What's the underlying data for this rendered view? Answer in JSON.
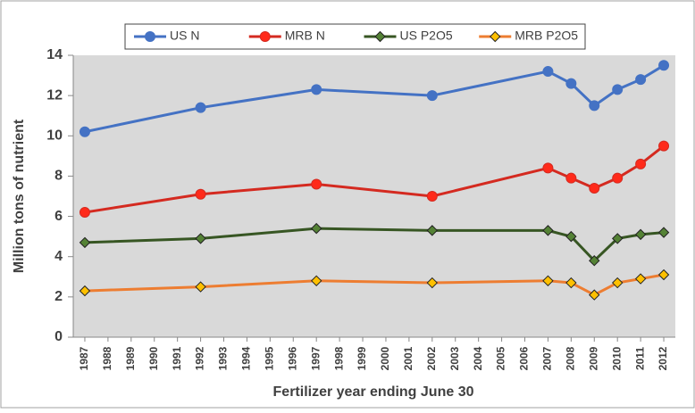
{
  "chart_data": {
    "type": "line",
    "x_label": "Fertilizer year ending June 30",
    "y_label": "Million tons of  nutrient",
    "x": [
      1987,
      1992,
      1997,
      2002,
      2007,
      2008,
      2009,
      2010,
      2011,
      2012
    ],
    "series": [
      {
        "name": "US N",
        "color": "#4472c4",
        "marker": "circle",
        "marker_fill": "#4472c4",
        "values": [
          10.2,
          11.4,
          12.3,
          12.0,
          13.2,
          12.6,
          11.5,
          12.3,
          12.8,
          13.5
        ]
      },
      {
        "name": "MRB N",
        "color": "#d42a20",
        "marker": "circle",
        "marker_fill": "#ff2a1a",
        "values": [
          6.2,
          7.1,
          7.6,
          7.0,
          8.4,
          7.9,
          7.4,
          7.9,
          8.6,
          9.5
        ]
      },
      {
        "name": "US P2O5",
        "color": "#375623",
        "marker": "diamond",
        "marker_fill": "#548235",
        "values": [
          4.7,
          4.9,
          5.4,
          5.3,
          5.3,
          5.0,
          3.8,
          4.9,
          5.1,
          5.2
        ]
      },
      {
        "name": "MRB P2O5",
        "color": "#ed7d31",
        "marker": "diamond",
        "marker_fill": "#ffc000",
        "values": [
          2.3,
          2.5,
          2.8,
          2.7,
          2.8,
          2.7,
          2.1,
          2.7,
          2.9,
          3.1
        ]
      }
    ],
    "xlim": [
      1986.5,
      2012.5
    ],
    "xticks": [
      1987,
      1988,
      1989,
      1990,
      1991,
      1992,
      1993,
      1994,
      1995,
      1996,
      1997,
      1998,
      1999,
      2000,
      2001,
      2002,
      2003,
      2004,
      2005,
      2006,
      2007,
      2008,
      2009,
      2010,
      2011,
      2012
    ],
    "ylim": [
      0,
      14
    ],
    "yticks": [
      0,
      2,
      4,
      6,
      8,
      10,
      12,
      14
    ],
    "plot_background": "#d9d9d9",
    "legend": "top"
  }
}
